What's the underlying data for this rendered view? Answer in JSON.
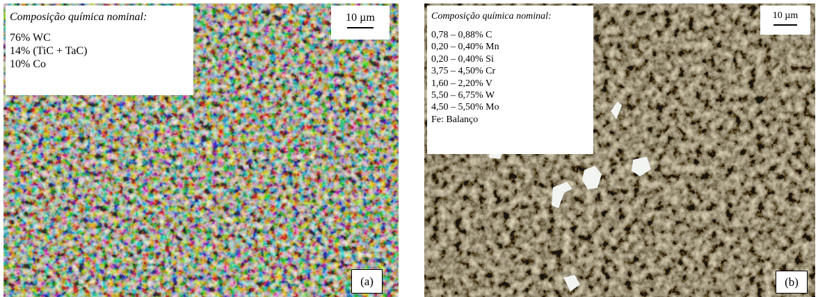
{
  "panels": [
    {
      "composition_title": "Composição química nominal:",
      "composition_lines": [
        "76% WC",
        "14% (TiC + TaC)",
        "10% Co"
      ],
      "scale": "10 µm",
      "label": "(a)"
    },
    {
      "composition_title": "Composição química nominal:",
      "composition_lines": [
        "0,78 – 0,88% C",
        "0,20 – 0,40% Mn",
        "0,20 – 0,40% Si",
        "3,75 – 4,50% Cr",
        "1,60 – 2,20% V",
        "5,50 – 6,75% W",
        "4,50 – 5,50% Mo",
        "Fe: Balanço"
      ],
      "scale": "10 µm",
      "label": "(b)"
    }
  ]
}
